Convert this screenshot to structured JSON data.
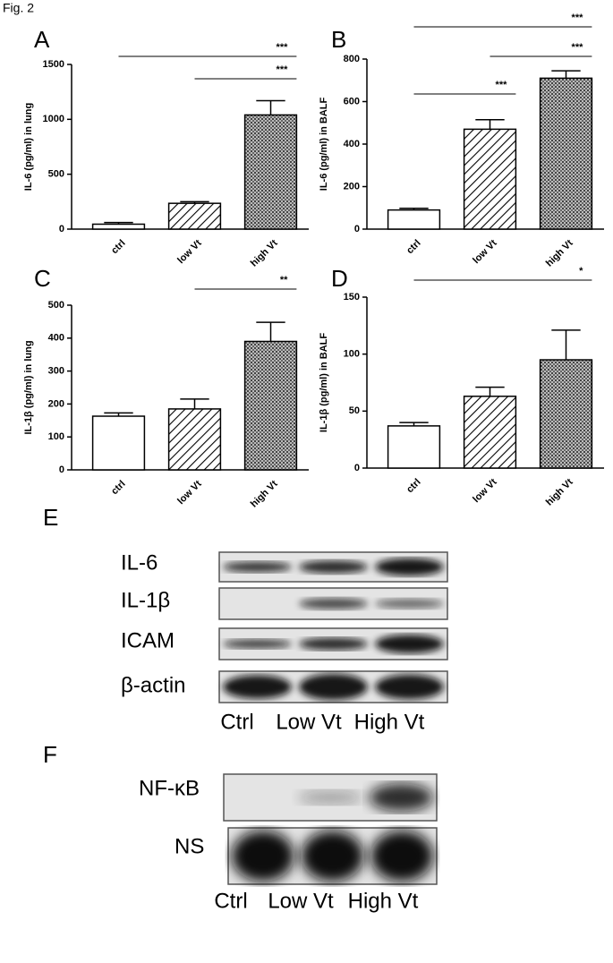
{
  "figure_label": "Fig. 2",
  "chart_data": [
    {
      "type": "bar",
      "title": "A",
      "y_label": "IL-6 (pg/ml) in lung",
      "categories": [
        "ctrl",
        "low Vt",
        "high Vt"
      ],
      "values": [
        45,
        235,
        1040
      ],
      "errors": [
        15,
        15,
        130
      ],
      "fills": [
        "white",
        "hatch",
        "cross"
      ],
      "ylim": [
        0,
        1500
      ],
      "yticks": [
        0,
        500,
        1000,
        1500
      ],
      "annotations": [
        {
          "label": "***",
          "from": 0,
          "to": 2
        },
        {
          "label": "***",
          "from": 1,
          "to": 2
        }
      ]
    },
    {
      "type": "bar",
      "title": "B",
      "y_label": "IL-6 (pg/ml) in BALF",
      "categories": [
        "ctrl",
        "low Vt",
        "high Vt"
      ],
      "values": [
        90,
        470,
        710
      ],
      "errors": [
        8,
        45,
        35
      ],
      "fills": [
        "white",
        "hatch",
        "cross"
      ],
      "ylim": [
        0,
        800
      ],
      "yticks": [
        0,
        200,
        400,
        600,
        800
      ],
      "annotations": [
        {
          "label": "***",
          "from": 0,
          "to": 2
        },
        {
          "label": "***",
          "from": 1,
          "to": 2
        },
        {
          "label": "***",
          "from": 0,
          "to": 1
        }
      ]
    },
    {
      "type": "bar",
      "title": "C",
      "y_label": "IL-1β (pg/ml) in lung",
      "categories": [
        "ctrl",
        "low Vt",
        "high Vt"
      ],
      "values": [
        163,
        185,
        390
      ],
      "errors": [
        10,
        30,
        58
      ],
      "fills": [
        "white",
        "hatch",
        "cross"
      ],
      "ylim": [
        0,
        500
      ],
      "yticks": [
        0,
        100,
        200,
        300,
        400,
        500
      ],
      "annotations": [
        {
          "label": "**",
          "from": 1,
          "to": 2
        }
      ]
    },
    {
      "type": "bar",
      "title": "D",
      "y_label": "IL-1β (pg/ml) in BALF",
      "categories": [
        "ctrl",
        "low Vt",
        "high Vt"
      ],
      "values": [
        37,
        63,
        95
      ],
      "errors": [
        3,
        8,
        26
      ],
      "fills": [
        "white",
        "hatch",
        "cross"
      ],
      "ylim": [
        0,
        150
      ],
      "yticks": [
        0,
        50,
        100,
        150
      ],
      "annotations": [
        {
          "label": "*",
          "from": 0,
          "to": 2
        }
      ]
    }
  ],
  "blot_e": {
    "letter": "E",
    "rows": [
      "IL-6",
      "IL-1β",
      "ICAM",
      "β-actin"
    ],
    "lanes": [
      "Ctrl",
      "Low Vt",
      "High Vt"
    ]
  },
  "blot_f": {
    "letter": "F",
    "rows": [
      "NF-κB",
      "NS"
    ],
    "lanes": [
      "Ctrl",
      "Low Vt",
      "High Vt"
    ]
  }
}
